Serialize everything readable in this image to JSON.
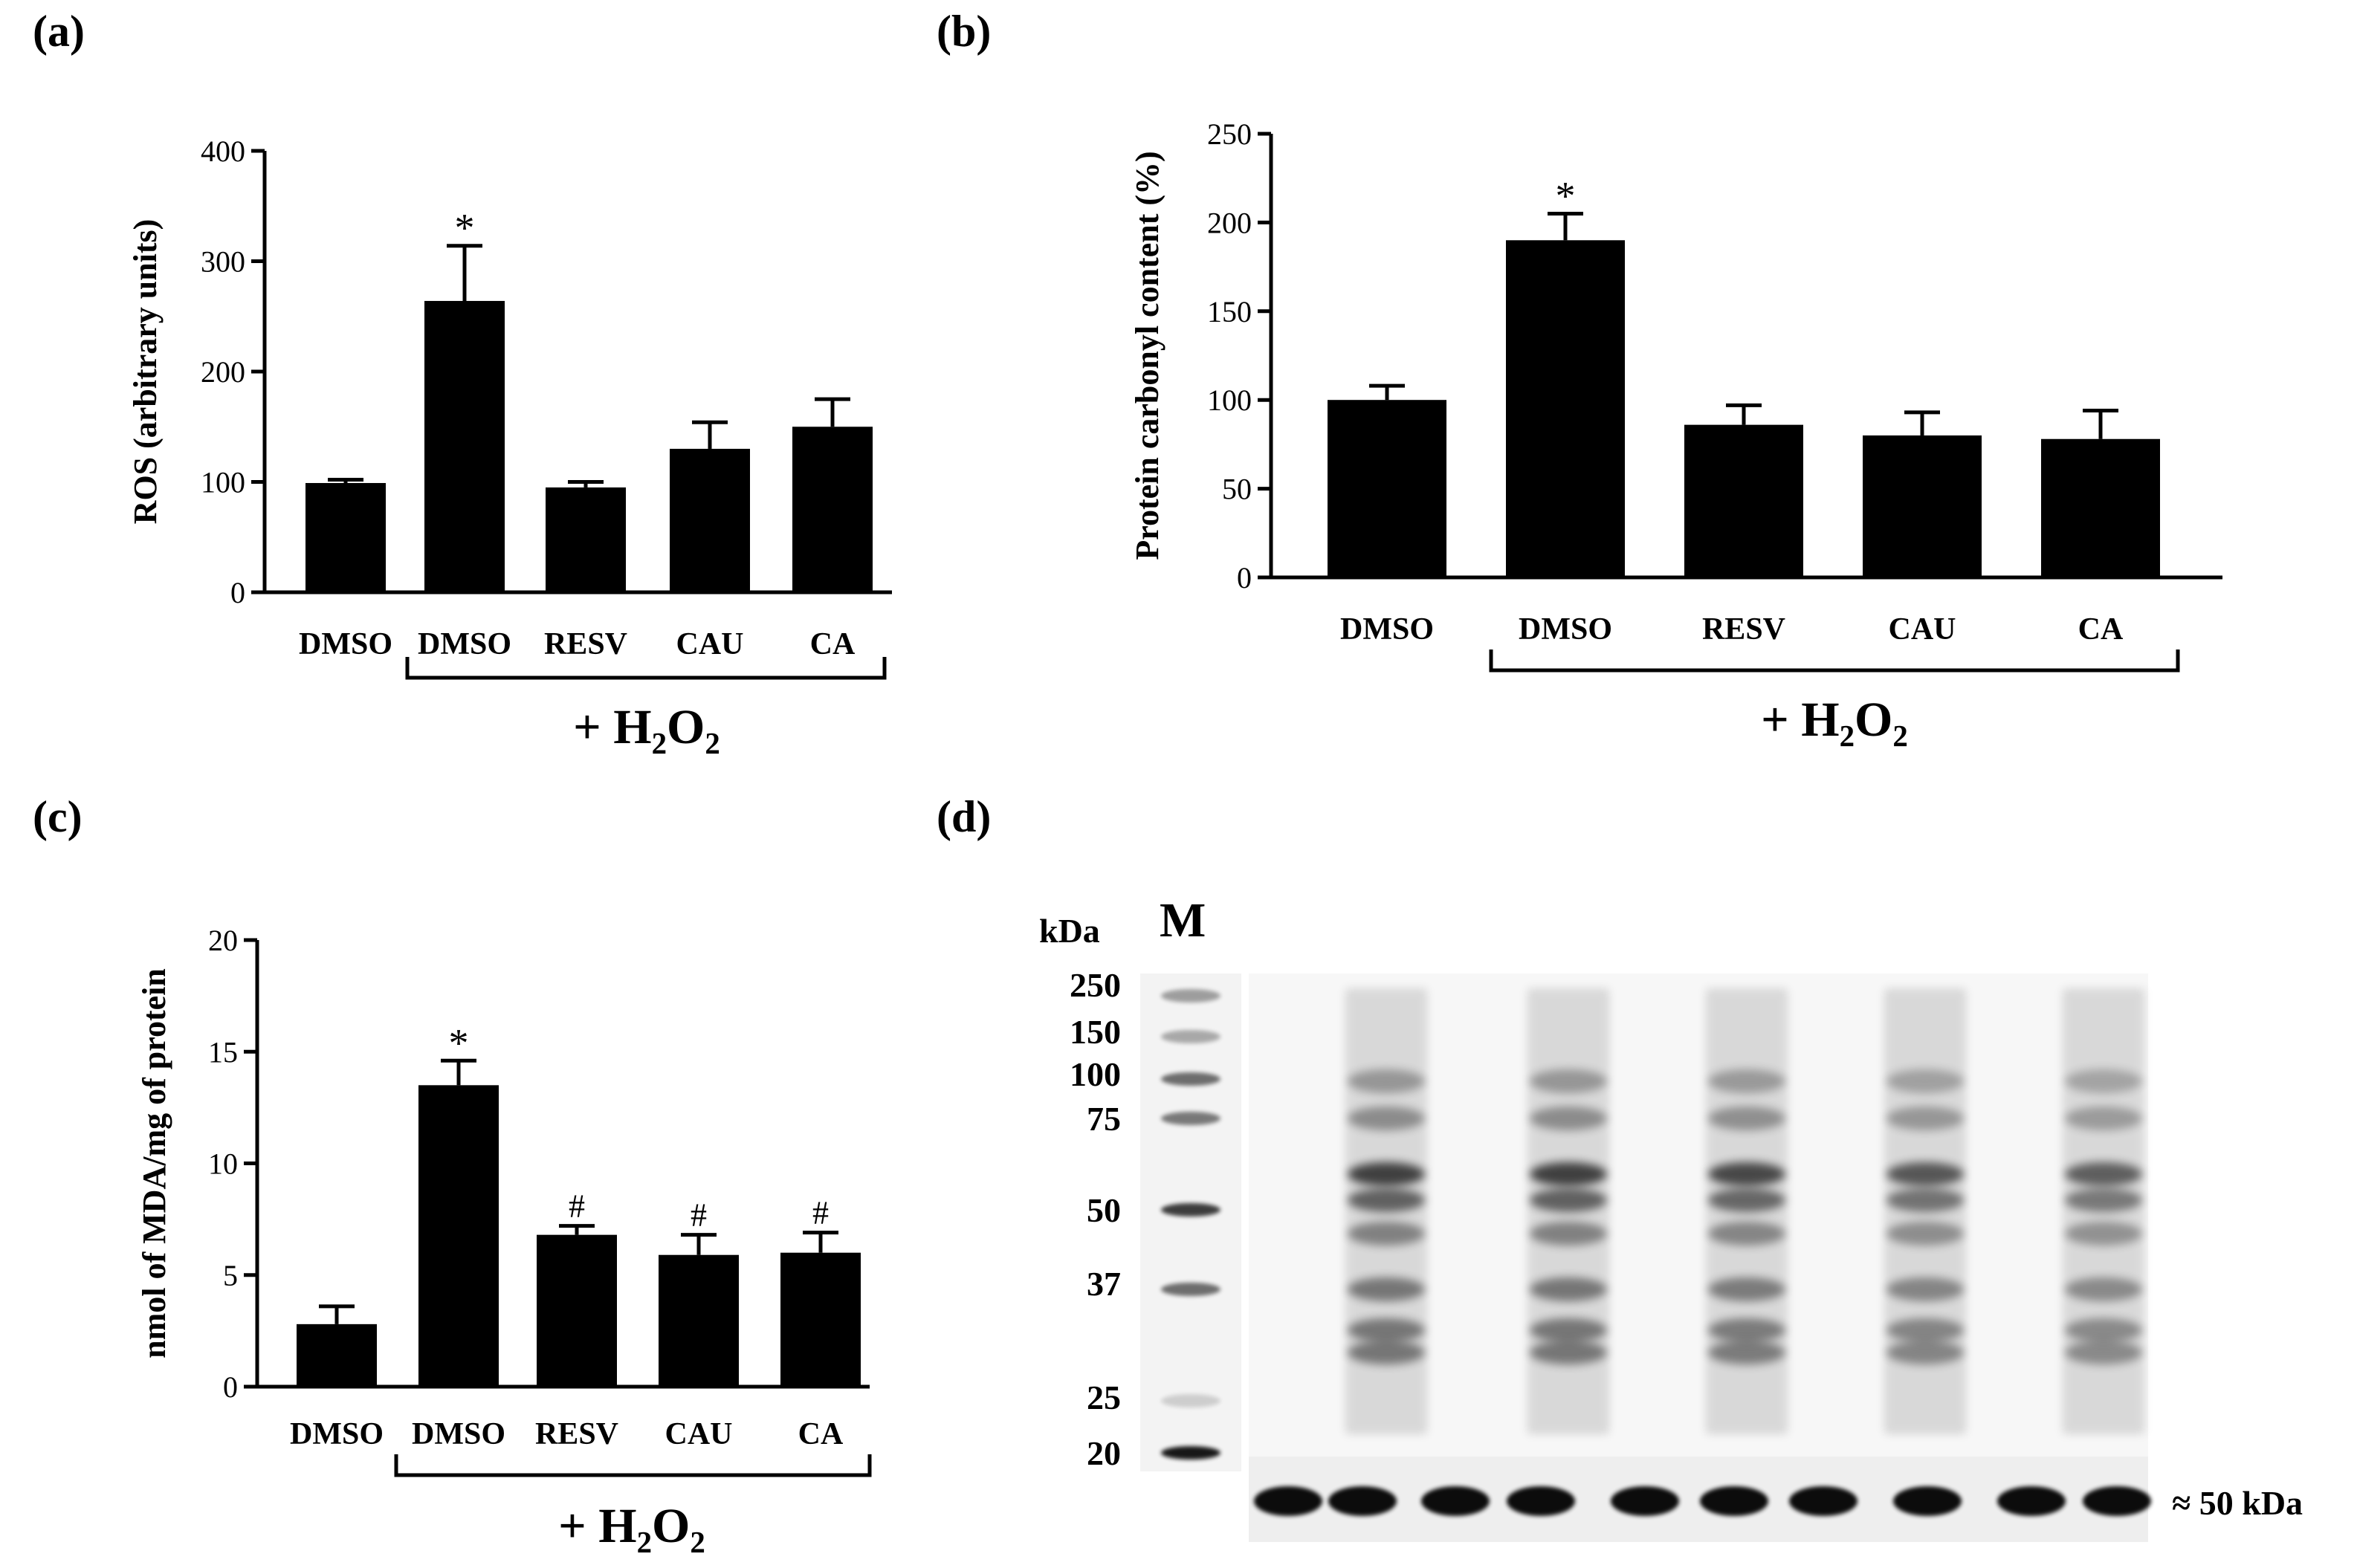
{
  "panel_labels": {
    "a": "(a)",
    "b": "(b)",
    "c": "(c)",
    "d": "(d)"
  },
  "treatment": {
    "prefix": "+ H",
    "sub1": "2",
    "mid": "O",
    "sub2": "2"
  },
  "chart_data": [
    {
      "id": "a",
      "type": "bar",
      "ylabel": "ROS (arbitrary units)",
      "categories": [
        "DMSO",
        "DMSO",
        "RESV",
        "CAU",
        "CA"
      ],
      "values": [
        99,
        264,
        95,
        130,
        150
      ],
      "errors": [
        3,
        50,
        5,
        24,
        25
      ],
      "annotations": [
        "",
        "*",
        "",
        "",
        ""
      ],
      "ylim": [
        0,
        400
      ],
      "yticks": [
        0,
        100,
        200,
        300,
        400
      ],
      "color": "#000000"
    },
    {
      "id": "b",
      "type": "bar",
      "ylabel": "Protein carbonyl content (%)",
      "categories": [
        "DMSO",
        "DMSO",
        "RESV",
        "CAU",
        "CA"
      ],
      "values": [
        100,
        190,
        86,
        80,
        78
      ],
      "errors": [
        8,
        15,
        11,
        13,
        16
      ],
      "annotations": [
        "",
        "*",
        "",
        "",
        ""
      ],
      "ylim": [
        0,
        250
      ],
      "yticks": [
        0,
        50,
        100,
        150,
        200,
        250
      ],
      "color": "#000000"
    },
    {
      "id": "c",
      "type": "bar",
      "ylabel": "nmol of MDA/mg of protein",
      "categories": [
        "DMSO",
        "DMSO",
        "RESV",
        "CAU",
        "CA"
      ],
      "values": [
        2.8,
        13.5,
        6.8,
        5.9,
        6.0
      ],
      "errors": [
        0.8,
        1.1,
        0.4,
        0.9,
        0.9
      ],
      "annotations": [
        "",
        "*",
        "#",
        "#",
        "#"
      ],
      "ylim": [
        0,
        20
      ],
      "yticks": [
        0,
        5,
        10,
        15,
        20
      ],
      "color": "#000000"
    }
  ],
  "blot": {
    "kda_label": "kDa",
    "marker_label": "M",
    "markers": [
      "250",
      "150",
      "100",
      "75",
      "50",
      "37",
      "25",
      "20"
    ],
    "loading_label": "≈ 50 kDa"
  }
}
